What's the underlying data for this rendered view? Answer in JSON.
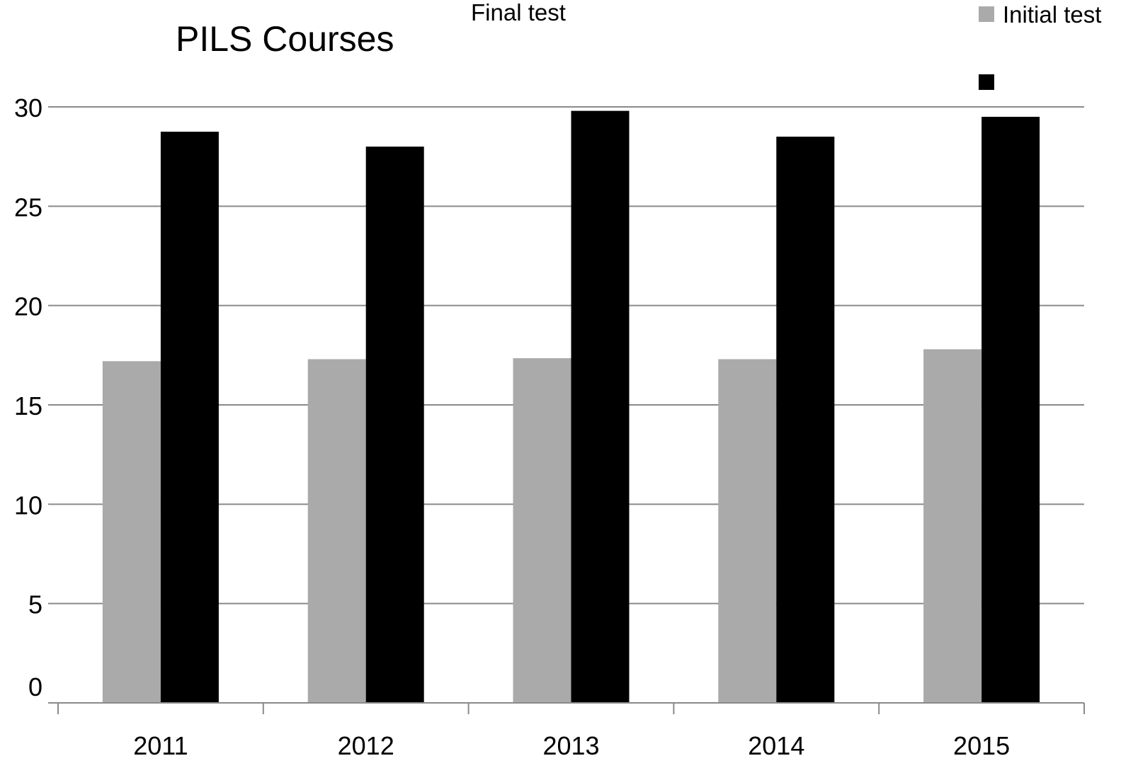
{
  "chart_data": {
    "type": "bar",
    "title": "PILS Courses",
    "categories": [
      "2011",
      "2012",
      "2013",
      "2014",
      "2015"
    ],
    "series": [
      {
        "name": "Initial test",
        "color": "#aaaaaa",
        "values": [
          17.2,
          17.3,
          17.35,
          17.3,
          17.8
        ]
      },
      {
        "name": "Final test",
        "color": "#000000",
        "values": [
          28.75,
          28.0,
          29.8,
          28.5,
          29.5
        ]
      }
    ],
    "y_ticks": [
      "0",
      "5",
      "10",
      "15",
      "20",
      "25",
      "30"
    ],
    "ylim": [
      0,
      30
    ],
    "grid": true,
    "xlabel": "",
    "ylabel": "",
    "legend": "top-right"
  }
}
